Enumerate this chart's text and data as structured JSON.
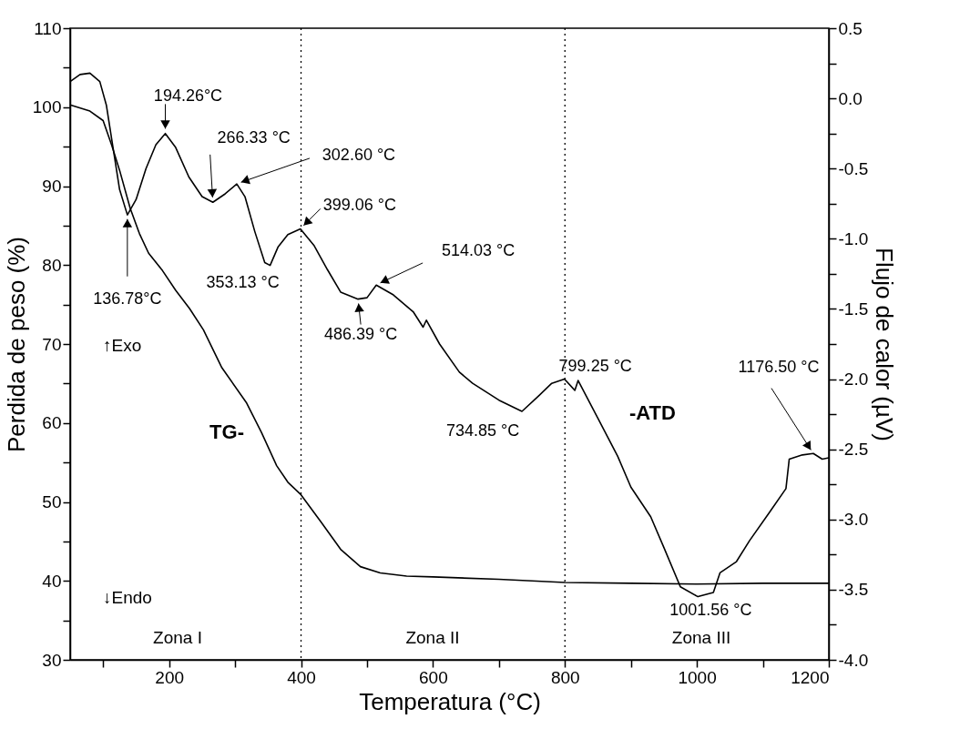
{
  "chart_data": {
    "type": "line",
    "xlabel": "Temperatura (°C)",
    "ylabel": "Perdida de peso (%)",
    "y2label": "Flujo de calor (µV)",
    "xlim": [
      50,
      1200
    ],
    "xticks": [
      {
        "value": 100,
        "label": null
      },
      200,
      {
        "value": 300,
        "label": null
      },
      400,
      {
        "value": 500,
        "label": null
      },
      600,
      {
        "value": 700,
        "label": null
      },
      800,
      {
        "value": 900,
        "label": null
      },
      1000,
      {
        "value": 1100,
        "label": null
      },
      1200
    ],
    "ylim": [
      30,
      110
    ],
    "yticks": [
      30,
      {
        "value": 35,
        "label": null
      },
      40,
      {
        "value": 45,
        "label": null
      },
      50,
      {
        "value": 55,
        "label": null
      },
      60,
      {
        "value": 65,
        "label": null
      },
      70,
      {
        "value": 75,
        "label": null
      },
      80,
      {
        "value": 85,
        "label": null
      },
      90,
      {
        "value": 95,
        "label": null
      },
      100,
      {
        "value": 105,
        "label": null
      },
      110
    ],
    "y2lim": [
      -4.0,
      0.5
    ],
    "y2ticks": [
      {
        "value": -4.0,
        "label": "-4.0"
      },
      {
        "value": -3.75,
        "label": null
      },
      {
        "value": -3.5,
        "label": "-3.5"
      },
      {
        "value": -3.25,
        "label": null
      },
      {
        "value": -3.0,
        "label": "-3.0"
      },
      {
        "value": -2.75,
        "label": null
      },
      {
        "value": -2.5,
        "label": "-2.5"
      },
      {
        "value": -2.25,
        "label": null
      },
      {
        "value": -2.0,
        "label": "-2.0"
      },
      {
        "value": -1.75,
        "label": null
      },
      {
        "value": -1.5,
        "label": "-1.5"
      },
      {
        "value": -1.25,
        "label": null
      },
      {
        "value": -1.0,
        "label": "-1.0"
      },
      {
        "value": -0.75,
        "label": null
      },
      {
        "value": -0.5,
        "label": "-0.5"
      },
      {
        "value": -0.25,
        "label": null
      },
      {
        "value": 0.0,
        "label": "0.0"
      },
      {
        "value": 0.25,
        "label": null
      },
      {
        "value": 0.5,
        "label": "0.5"
      }
    ],
    "grid": false,
    "marker": "none",
    "line_style": "solid",
    "series": [
      {
        "name": "TG-",
        "color": "#000000",
        "x": [
          50,
          80,
          100,
          113,
          125,
          141,
          155,
          169,
          190,
          210,
          231,
          252,
          280,
          317,
          340,
          363,
          380,
          400,
          430,
          460,
          490,
          520,
          560,
          600,
          700,
          800,
          900,
          1000,
          1100,
          1200
        ],
        "values": [
          100.3,
          99.5,
          98.3,
          95.2,
          92,
          87.2,
          84,
          81.5,
          79.3,
          76.8,
          74.5,
          71.8,
          67,
          62.6,
          58.8,
          54.6,
          52.5,
          50.9,
          47.5,
          44,
          41.8,
          41,
          40.6,
          40.5,
          40.2,
          39.8,
          39.7,
          39.6,
          39.7,
          39.7
        ]
      },
      {
        "name": "-ATD",
        "color": "#000000",
        "axis": "y2",
        "x": [
          50,
          65,
          80,
          95,
          105,
          115,
          125,
          136.78,
          150,
          165,
          180,
          194.26,
          210,
          230,
          250,
          266.33,
          285,
          302.6,
          315,
          330,
          345,
          353.13,
          365,
          380,
          399.06,
          420,
          440,
          460,
          486.39,
          500,
          514.03,
          540,
          570,
          585,
          590,
          610,
          640,
          660,
          700,
          734.85,
          760,
          780,
          799.25,
          815,
          820,
          850,
          880,
          900,
          930,
          950,
          975,
          1001.56,
          1025,
          1035,
          1060,
          1080,
          1110,
          1135,
          1140,
          1160,
          1176.5,
          1190,
          1200
        ],
        "values": [
          0.12,
          0.17,
          0.18,
          0.12,
          -0.05,
          -0.35,
          -0.65,
          -0.83,
          -0.72,
          -0.5,
          -0.33,
          -0.25,
          -0.35,
          -0.56,
          -0.7,
          -0.74,
          -0.68,
          -0.61,
          -0.7,
          -0.95,
          -1.17,
          -1.19,
          -1.06,
          -0.97,
          -0.93,
          -1.05,
          -1.22,
          -1.38,
          -1.43,
          -1.42,
          -1.33,
          -1.4,
          -1.52,
          -1.63,
          -1.58,
          -1.75,
          -1.95,
          -2.03,
          -2.15,
          -2.23,
          -2.12,
          -2.03,
          -2.0,
          -2.08,
          -2.01,
          -2.28,
          -2.55,
          -2.77,
          -2.98,
          -3.2,
          -3.48,
          -3.55,
          -3.52,
          -3.38,
          -3.3,
          -3.15,
          -2.95,
          -2.78,
          -2.57,
          -2.54,
          -2.53,
          -2.57,
          -2.56
        ]
      }
    ],
    "ref_lines": [
      {
        "axis": "x",
        "value": 400,
        "line_style": "dotted"
      },
      {
        "axis": "x",
        "value": 800,
        "line_style": "dotted"
      }
    ],
    "annotations": [
      {
        "text": "136.78°C",
        "x": 136.78,
        "y": 86.4
      },
      {
        "text": "194.26°C",
        "x": 194.26,
        "y": 96.7
      },
      {
        "text": "266.33 °C",
        "x": 266.33,
        "y": 88.0
      },
      {
        "text": "302.60 °C",
        "x": 302.6,
        "y": 90.3
      },
      {
        "text": "353.13 °C",
        "x": 353.13,
        "y": 80.0
      },
      {
        "text": "399.06 °C",
        "x": 399.06,
        "y": 84.6
      },
      {
        "text": "486.39 °C",
        "x": 486.39,
        "y": 75.7
      },
      {
        "text": "514.03 °C",
        "x": 514.03,
        "y": 77.5
      },
      {
        "text": "734.85 °C",
        "x": 734.85,
        "y": 61.5
      },
      {
        "text": "799.25 °C",
        "x": 799.25,
        "y": 65.6
      },
      {
        "text": "1001.56 °C",
        "x": 1001.56,
        "y": 38.0
      },
      {
        "text": "1176.50 °C",
        "x": 1176.5,
        "y": 56.1
      },
      "↑Exo",
      "↓Endo",
      "Zona I",
      "Zona II",
      "Zona III"
    ]
  }
}
